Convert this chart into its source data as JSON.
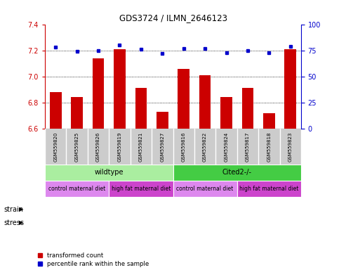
{
  "title": "GDS3724 / ILMN_2646123",
  "samples": [
    "GSM559820",
    "GSM559825",
    "GSM559826",
    "GSM559819",
    "GSM559821",
    "GSM559827",
    "GSM559816",
    "GSM559822",
    "GSM559824",
    "GSM559817",
    "GSM559818",
    "GSM559823"
  ],
  "bar_values": [
    6.88,
    6.84,
    7.14,
    7.21,
    6.91,
    6.73,
    7.06,
    7.01,
    6.84,
    6.91,
    6.72,
    7.21
  ],
  "dot_values": [
    78,
    74,
    75,
    80,
    76,
    72,
    77,
    77,
    73,
    75,
    73,
    79
  ],
  "ylim_left": [
    6.6,
    7.4
  ],
  "ylim_right": [
    0,
    100
  ],
  "yticks_left": [
    6.6,
    6.8,
    7.0,
    7.2,
    7.4
  ],
  "yticks_right": [
    0,
    25,
    50,
    75,
    100
  ],
  "bar_color": "#cc0000",
  "dot_color": "#0000cc",
  "strain_groups": [
    {
      "label": "wildtype",
      "start": 0,
      "end": 6,
      "color": "#aaeea0"
    },
    {
      "label": "Cited2-/-",
      "start": 6,
      "end": 12,
      "color": "#44cc44"
    }
  ],
  "stress_groups": [
    {
      "label": "control maternal diet",
      "start": 0,
      "end": 3,
      "color": "#dd88ee"
    },
    {
      "label": "high fat maternal diet",
      "start": 3,
      "end": 6,
      "color": "#cc44cc"
    },
    {
      "label": "control maternal diet",
      "start": 6,
      "end": 9,
      "color": "#dd88ee"
    },
    {
      "label": "high fat maternal diet",
      "start": 9,
      "end": 12,
      "color": "#cc44cc"
    }
  ],
  "legend_items": [
    {
      "label": "transformed count",
      "color": "#cc0000"
    },
    {
      "label": "percentile rank within the sample",
      "color": "#0000cc"
    }
  ],
  "xlabel_strain": "strain",
  "xlabel_stress": "stress",
  "left_axis_color": "#cc0000",
  "right_axis_color": "#0000cc",
  "sample_bg_color": "#cccccc",
  "sample_sep_color": "#ffffff"
}
